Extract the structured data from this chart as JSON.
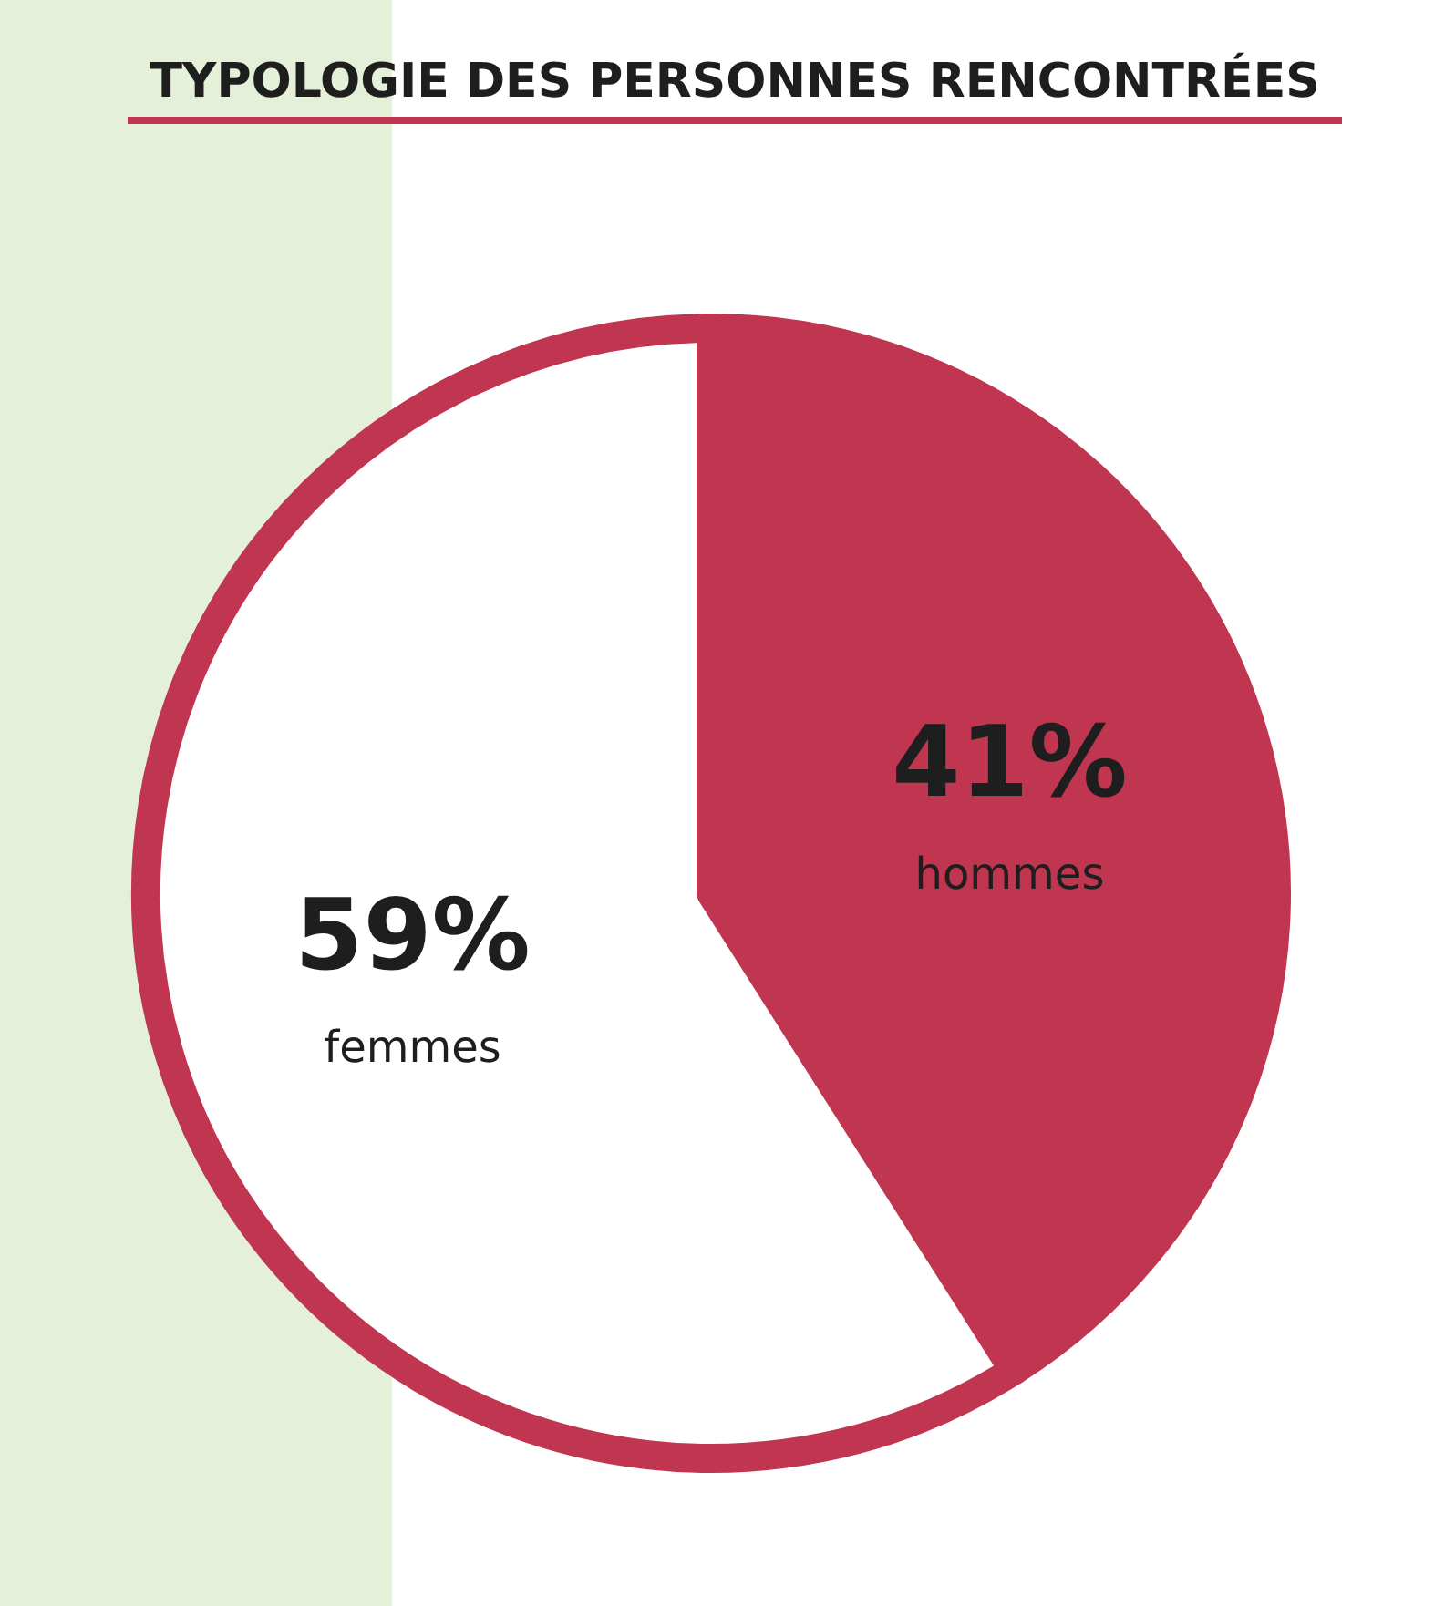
{
  "chart_data": {
    "type": "pie",
    "title": "TYPOLOGIE DES PERSONNES RENCONTRÉES",
    "categories": [
      "hommes",
      "femmes"
    ],
    "values": [
      41,
      59
    ],
    "colors": [
      "#c0354f",
      "#ffffff"
    ],
    "value_labels": [
      "41%",
      "59%"
    ]
  }
}
